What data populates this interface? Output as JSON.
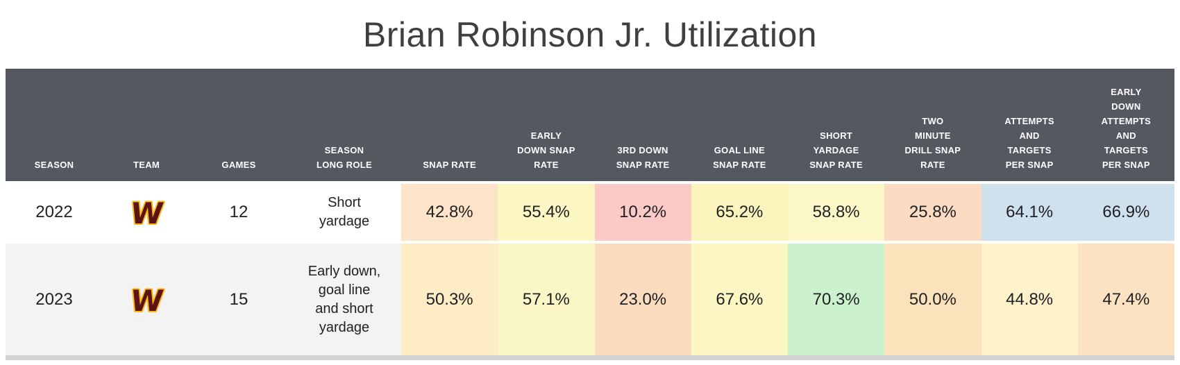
{
  "title": "Brian Robinson Jr. Utilization",
  "colors": {
    "header_bg": "#54585f",
    "header_text": "#ffffff",
    "row_alt_bg": "#f3f3f3",
    "bottom_bar": "#d2d2d2",
    "logo_fill": "#5a1414",
    "logo_outline": "#ffb612"
  },
  "icons": {
    "team_logo": "commanders-w-icon",
    "logo_glyph": "W"
  },
  "table": {
    "headers": [
      "SEASON",
      "TEAM",
      "GAMES",
      "SEASON LONG ROLE",
      "SNAP RATE",
      "EARLY DOWN SNAP RATE",
      "3RD DOWN SNAP RATE",
      "GOAL LINE SNAP RATE",
      "SHORT YARDAGE SNAP RATE",
      "TWO MINUTE DRILL SNAP RATE",
      "ATTEMPTS AND TARGETS PER SNAP",
      "EARLY DOWN ATTEMPTS AND TARGETS PER SNAP"
    ],
    "rows": [
      {
        "season": "2022",
        "team": "Washington Commanders",
        "games": "12",
        "role": "Short yardage",
        "metrics": [
          {
            "value": "42.8%",
            "bg": "#fde3c8"
          },
          {
            "value": "55.4%",
            "bg": "#fbf6c2"
          },
          {
            "value": "10.2%",
            "bg": "#fbc9c6"
          },
          {
            "value": "65.2%",
            "bg": "#fbf5bd"
          },
          {
            "value": "58.8%",
            "bg": "#fcf7c6"
          },
          {
            "value": "25.8%",
            "bg": "#fbdcc3"
          },
          {
            "value": "64.1%",
            "bg": "#cfe1ec"
          },
          {
            "value": "66.9%",
            "bg": "#cfe1ec"
          }
        ]
      },
      {
        "season": "2023",
        "team": "Washington Commanders",
        "games": "15",
        "role": "Early down, goal line and short yardage",
        "metrics": [
          {
            "value": "50.3%",
            "bg": "#fdecc4"
          },
          {
            "value": "57.1%",
            "bg": "#fbf6c6"
          },
          {
            "value": "23.0%",
            "bg": "#fadcbe"
          },
          {
            "value": "67.6%",
            "bg": "#fcf6c3"
          },
          {
            "value": "70.3%",
            "bg": "#cbf2cd"
          },
          {
            "value": "50.0%",
            "bg": "#fae3bb"
          },
          {
            "value": "44.8%",
            "bg": "#fdf2ca"
          },
          {
            "value": "47.4%",
            "bg": "#fbe3c2"
          }
        ]
      }
    ]
  },
  "chart_data": {
    "type": "table",
    "title": "Brian Robinson Jr. Utilization",
    "columns": [
      "SEASON",
      "TEAM",
      "GAMES",
      "SEASON LONG ROLE",
      "SNAP RATE",
      "EARLY DOWN SNAP RATE",
      "3RD DOWN SNAP RATE",
      "GOAL LINE SNAP RATE",
      "SHORT YARDAGE SNAP RATE",
      "TWO MINUTE DRILL SNAP RATE",
      "ATTEMPTS AND TARGETS PER SNAP",
      "EARLY DOWN ATTEMPTS AND TARGETS PER SNAP"
    ],
    "rows": [
      [
        "2022",
        "Washington Commanders",
        "12",
        "Short yardage",
        "42.8%",
        "55.4%",
        "10.2%",
        "65.2%",
        "58.8%",
        "25.8%",
        "64.1%",
        "66.9%"
      ],
      [
        "2023",
        "Washington Commanders",
        "15",
        "Early down, goal line and short yardage",
        "50.3%",
        "57.1%",
        "23.0%",
        "67.6%",
        "70.3%",
        "50.0%",
        "44.8%",
        "47.4%"
      ]
    ]
  }
}
